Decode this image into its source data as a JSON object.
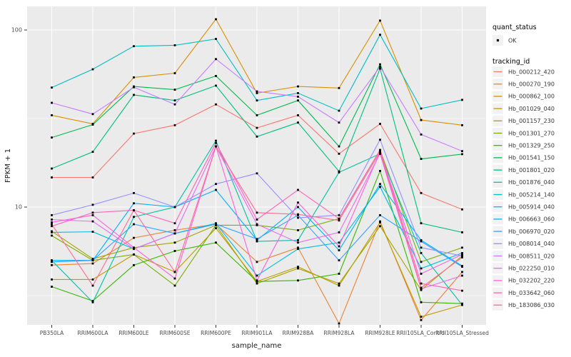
{
  "chart_data": {
    "type": "line",
    "title": "",
    "xlabel": "sample_name",
    "ylabel": "FPKM + 1",
    "y_scale": "log10",
    "ylim": [
      2.16,
      134.6
    ],
    "y_major_ticks": [
      10,
      100
    ],
    "y_minor_ticks": [
      3.1623,
      31.623
    ],
    "grid": "on",
    "panel_fill": "#EBEBEB",
    "grid_color": "#FFFFFF",
    "tick_label_color": "#4D4D4D",
    "axis_title_color": "#1a1a1a",
    "point_color": "#000000",
    "legend_key_fill": "#F2F2F2",
    "categories": [
      "PB350LA",
      "RRIM600LA",
      "RRIM600LE",
      "RRIM600SE",
      "RRIM600PE",
      "RRIM901LA",
      "RRIM928BA",
      "RRIM928LA",
      "RRIM928LE",
      "RRII105LA_Control",
      "RRII105LA_Stressed"
    ],
    "legend": {
      "quant_status": {
        "title": "quant_status",
        "items": [
          {
            "label": "OK",
            "marker": "point"
          }
        ]
      },
      "tracking_id": {
        "title": "tracking_id"
      }
    },
    "series": [
      {
        "name": "Hb_000212_420",
        "color": "#F8766D",
        "values": [
          14.7,
          14.7,
          26,
          29,
          38,
          28,
          33,
          20,
          29.5,
          12,
          9.7
        ]
      },
      {
        "name": "Hb_000270_190",
        "color": "#EA8331",
        "values": [
          4.7,
          4.8,
          6.7,
          7.4,
          8.0,
          4.9,
          5.9,
          2.2,
          8.3,
          2.3,
          4.3
        ]
      },
      {
        "name": "Hb_000862_100",
        "color": "#D89000",
        "values": [
          33,
          29.5,
          54,
          57,
          115,
          44,
          48,
          47,
          113,
          31,
          29
        ]
      },
      {
        "name": "Hb_001029_040",
        "color": "#C09B00",
        "values": [
          3.9,
          3.9,
          5.4,
          4.3,
          7.6,
          3.8,
          4.6,
          3.6,
          8.2,
          2.4,
          2.8
        ]
      },
      {
        "name": "Hb_001157_230",
        "color": "#A3A500",
        "values": [
          7.3,
          5.1,
          5.9,
          6.3,
          7.9,
          3.7,
          4.5,
          3.7,
          7.8,
          3.4,
          5.3
        ]
      },
      {
        "name": "Hb_001301_270",
        "color": "#7CAE00",
        "values": [
          6.9,
          5.0,
          5.4,
          3.6,
          7.9,
          7.9,
          7.4,
          8.6,
          21,
          4.9,
          5.9
        ]
      },
      {
        "name": "Hb_001329_250",
        "color": "#39B600",
        "values": [
          3.55,
          2.95,
          4.7,
          5.65,
          6.3,
          3.8,
          3.85,
          4.2,
          16,
          2.9,
          2.85
        ]
      },
      {
        "name": "Hb_001541_150",
        "color": "#00BB4E",
        "values": [
          24.7,
          29.2,
          48,
          46,
          55,
          33,
          40,
          22,
          64,
          18.7,
          19.9
        ]
      },
      {
        "name": "Hb_001801_020",
        "color": "#00BF7D",
        "values": [
          16.5,
          20.5,
          43,
          40,
          48.5,
          25,
          30,
          15.9,
          60.5,
          8.1,
          7.2
        ]
      },
      {
        "name": "Hb_001876_040",
        "color": "#00C1A3",
        "values": [
          5.0,
          2.9,
          8.8,
          10,
          23.7,
          6.4,
          6.5,
          15.7,
          20,
          5.5,
          2.8
        ]
      },
      {
        "name": "Hb_005214_140",
        "color": "#00BFC4",
        "values": [
          47.3,
          60,
          81,
          82,
          89,
          40,
          44,
          35,
          94,
          36,
          40.3
        ]
      },
      {
        "name": "Hb_005914_040",
        "color": "#00BAE0",
        "values": [
          7.2,
          7.25,
          5.8,
          7.1,
          8.1,
          4.1,
          5.8,
          6.3,
          13,
          4.5,
          5.5
        ]
      },
      {
        "name": "Hb_006663_060",
        "color": "#00B0F6",
        "values": [
          5.0,
          5.0,
          10.5,
          10,
          12.5,
          6.5,
          10,
          5.7,
          13.5,
          6.5,
          4.65
        ]
      },
      {
        "name": "Hb_006970_020",
        "color": "#35A2FF",
        "values": [
          4.9,
          5.0,
          8.0,
          7.1,
          8.0,
          6.6,
          9.0,
          5.0,
          9.0,
          6.4,
          4.6
        ]
      },
      {
        "name": "Hb_008014_040",
        "color": "#9590FF",
        "values": [
          9.0,
          10.3,
          12,
          10,
          13.5,
          15.5,
          8.7,
          9.0,
          24,
          5.9,
          5.3
        ]
      },
      {
        "name": "Hb_008511_020",
        "color": "#C77CFF",
        "values": [
          38.8,
          33.5,
          47.5,
          38,
          68.5,
          45,
          42,
          30,
          62,
          25.7,
          20.7
        ]
      },
      {
        "name": "Hb_022250_010",
        "color": "#E76BF3",
        "values": [
          8.5,
          8.3,
          5.8,
          7.1,
          22,
          8.0,
          6.3,
          7.2,
          20,
          3.45,
          4.1
        ]
      },
      {
        "name": "Hb_032202_220",
        "color": "#FA62DB",
        "values": [
          8.2,
          9.0,
          5.9,
          3.95,
          22,
          3.85,
          10.6,
          6.0,
          20.5,
          4.2,
          5.4
        ]
      },
      {
        "name": "Hb_033642_060",
        "color": "#FF62BC",
        "values": [
          7.8,
          9.3,
          9.6,
          8.1,
          23,
          8.5,
          12.5,
          8.6,
          21,
          3.7,
          3.37
        ]
      },
      {
        "name": "Hb_183086_030",
        "color": "#FF6A98",
        "values": [
          8.0,
          3.6,
          9.6,
          4.3,
          22,
          9.3,
          9.1,
          8.4,
          20.5,
          3.5,
          5.2
        ]
      }
    ]
  }
}
